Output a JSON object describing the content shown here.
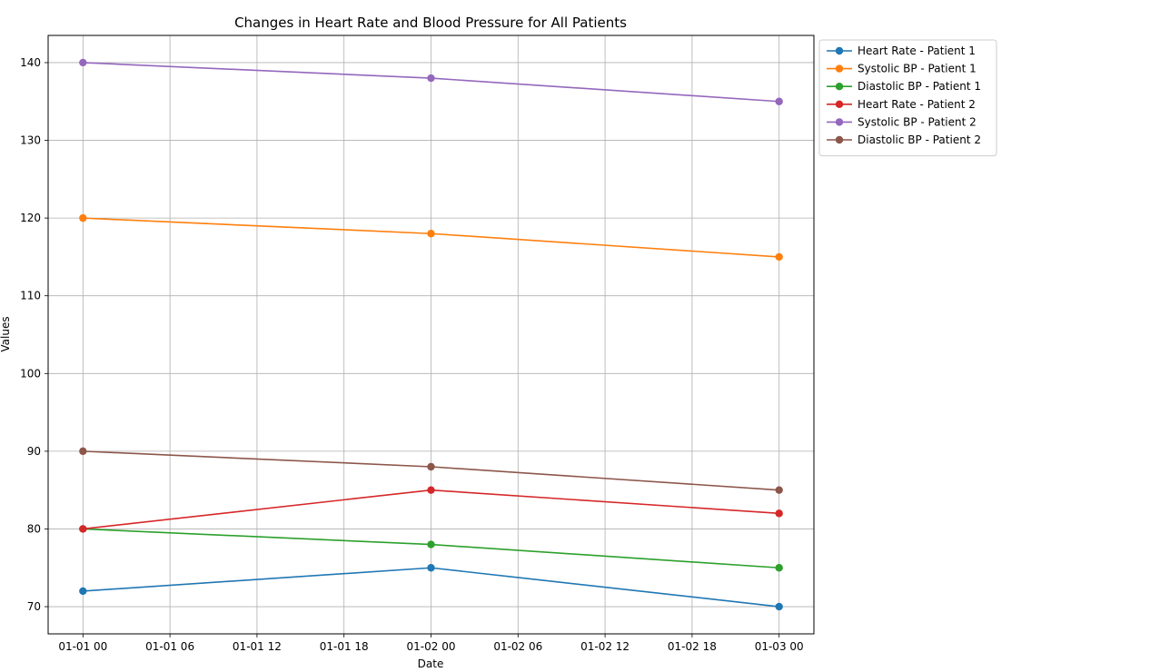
{
  "chart_data": {
    "type": "line",
    "title": "Changes in Heart Rate and Blood Pressure for All Patients",
    "xlabel": "Date",
    "ylabel": "Values",
    "x": [
      "01-01 00",
      "01-02 00",
      "01-03 00"
    ],
    "x_hours": [
      0,
      24,
      48
    ],
    "x_ticks": [
      {
        "label": "01-01 00",
        "hours": 0
      },
      {
        "label": "01-01 06",
        "hours": 6
      },
      {
        "label": "01-01 12",
        "hours": 12
      },
      {
        "label": "01-01 18",
        "hours": 18
      },
      {
        "label": "01-02 00",
        "hours": 24
      },
      {
        "label": "01-02 06",
        "hours": 30
      },
      {
        "label": "01-02 12",
        "hours": 36
      },
      {
        "label": "01-02 18",
        "hours": 42
      },
      {
        "label": "01-03 00",
        "hours": 48
      }
    ],
    "y_ticks": [
      70,
      80,
      90,
      100,
      110,
      120,
      130,
      140
    ],
    "ylim": [
      66.5,
      143.5
    ],
    "xlim": [
      -2.4,
      50.4
    ],
    "grid": true,
    "legend_position": "outside-top-right",
    "series": [
      {
        "name": "Heart Rate - Patient 1",
        "color": "#1f77b4",
        "values": [
          72,
          75,
          70
        ]
      },
      {
        "name": "Systolic BP - Patient 1",
        "color": "#ff7f0e",
        "values": [
          120,
          118,
          115
        ]
      },
      {
        "name": "Diastolic BP - Patient 1",
        "color": "#2ca02c",
        "values": [
          80,
          78,
          75
        ]
      },
      {
        "name": "Heart Rate - Patient 2",
        "color": "#d62728",
        "values": [
          80,
          85,
          82
        ]
      },
      {
        "name": "Systolic BP - Patient 2",
        "color": "#9467bd",
        "values": [
          140,
          138,
          135
        ]
      },
      {
        "name": "Diastolic BP - Patient 2",
        "color": "#8c564b",
        "values": [
          90,
          88,
          85
        ]
      }
    ]
  }
}
